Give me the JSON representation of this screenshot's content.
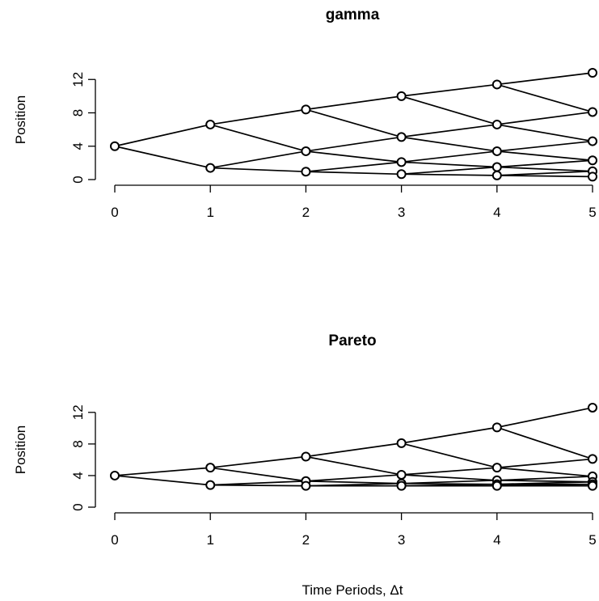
{
  "xlabel": "Time Periods, Δt",
  "chart_data": [
    {
      "type": "scatter",
      "title": "gamma",
      "ylabel": "Position",
      "x_ticks": [
        0,
        1,
        2,
        3,
        4,
        5
      ],
      "y_ticks": [
        0,
        4,
        8,
        12
      ],
      "xlim": [
        0,
        5
      ],
      "ylim": [
        0,
        14
      ],
      "nodes": [
        [
          4.0
        ],
        [
          6.6,
          1.4
        ],
        [
          8.4,
          3.4,
          0.95
        ],
        [
          10.0,
          5.1,
          2.1,
          0.65
        ],
        [
          11.4,
          6.6,
          3.4,
          1.5,
          0.5
        ],
        [
          12.8,
          8.1,
          4.6,
          2.3,
          1.0,
          0.35
        ]
      ],
      "edge_style": "recombining binomial lattice: each node links to the up and down node of the next period"
    },
    {
      "type": "scatter",
      "title": "Pareto",
      "ylabel": "Position",
      "x_ticks": [
        0,
        1,
        2,
        3,
        4,
        5
      ],
      "y_ticks": [
        0,
        4,
        8,
        12
      ],
      "xlim": [
        0,
        5
      ],
      "ylim": [
        0,
        14
      ],
      "nodes": [
        [
          4.0
        ],
        [
          5.0,
          2.8
        ],
        [
          6.4,
          3.3,
          2.7
        ],
        [
          8.1,
          4.1,
          3.0,
          2.7
        ],
        [
          10.1,
          5.0,
          3.4,
          2.9,
          2.7
        ],
        [
          12.6,
          6.1,
          3.9,
          3.2,
          2.9,
          2.7
        ]
      ],
      "edge_style": "recombining binomial lattice: each node links to the up and down node of the next period"
    }
  ]
}
